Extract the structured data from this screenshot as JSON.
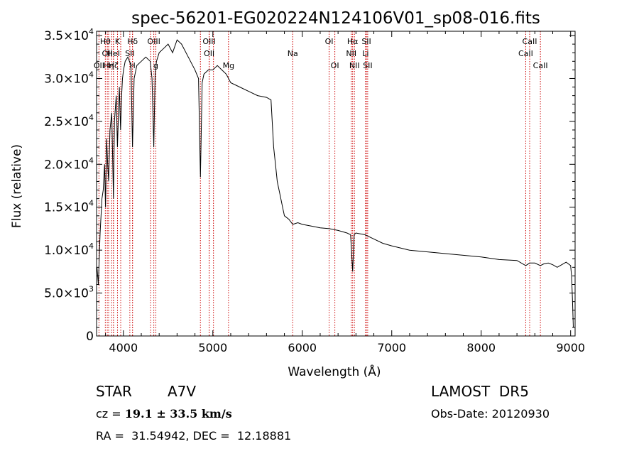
{
  "chart_data": {
    "type": "line",
    "title": "spec-56201-EG020224N124106V01_sp08-016.fits",
    "xlabel": "Wavelength (Å)",
    "ylabel": "Flux (relative)",
    "xlim": [
      3700,
      9050
    ],
    "ylim": [
      0,
      35500
    ],
    "x_ticks": [
      {
        "value": 4000,
        "label": "4000"
      },
      {
        "value": 5000,
        "label": "5000"
      },
      {
        "value": 6000,
        "label": "6000"
      },
      {
        "value": 7000,
        "label": "7000"
      },
      {
        "value": 8000,
        "label": "8000"
      },
      {
        "value": 9000,
        "label": "9000"
      }
    ],
    "y_ticks": [
      {
        "value": 0,
        "mant": "0",
        "exp": ""
      },
      {
        "value": 5000,
        "mant": "5.0×10",
        "exp": "3"
      },
      {
        "value": 10000,
        "mant": "1.0×10",
        "exp": "4"
      },
      {
        "value": 15000,
        "mant": "1.5×10",
        "exp": "4"
      },
      {
        "value": 20000,
        "mant": "2.0×10",
        "exp": "4"
      },
      {
        "value": 25000,
        "mant": "2.5×10",
        "exp": "4"
      },
      {
        "value": 30000,
        "mant": "3.0×10",
        "exp": "4"
      },
      {
        "value": 35000,
        "mant": "3.5×10",
        "exp": "4"
      }
    ],
    "grid": false,
    "line_color": "#000000",
    "marker_color": "#cc0000",
    "series": [
      {
        "x": [
          3705,
          3720,
          3740,
          3760,
          3775,
          3790,
          3800,
          3812,
          3825,
          3835,
          3850,
          3870,
          3889,
          3900,
          3920,
          3933,
          3945,
          3955,
          3968,
          3980,
          3990,
          4002,
          4020,
          4050,
          4085,
          4102,
          4120,
          4150,
          4200,
          4250,
          4300,
          4320,
          4340,
          4355,
          4370,
          4400,
          4450,
          4500,
          4550,
          4600,
          4650,
          4700,
          4750,
          4800,
          4840,
          4861,
          4880,
          4900,
          4950,
          5000,
          5050,
          5100,
          5150,
          5200,
          5300,
          5400,
          5500,
          5600,
          5650,
          5680,
          5700,
          5720,
          5750,
          5780,
          5800,
          5850,
          5893,
          5950,
          6000,
          6100,
          6200,
          6300,
          6400,
          6500,
          6540,
          6563,
          6580,
          6600,
          6700,
          6800,
          6900,
          7000,
          7200,
          7400,
          7600,
          7800,
          8000,
          8200,
          8400,
          8498,
          8542,
          8600,
          8662,
          8700,
          8750,
          8800,
          8850,
          8900,
          8950,
          9000,
          9010,
          9020,
          9030
        ],
        "y": [
          8000,
          6000,
          12000,
          16000,
          17000,
          20000,
          15000,
          23000,
          20000,
          18000,
          24000,
          26000,
          16000,
          25000,
          28000,
          22000,
          26000,
          29000,
          24000,
          28000,
          30000,
          31000,
          32000,
          32500,
          31500,
          22000,
          30000,
          31500,
          32000,
          32500,
          32000,
          30000,
          22000,
          30500,
          32000,
          33000,
          33500,
          34000,
          33000,
          34500,
          34000,
          33000,
          32000,
          31000,
          30000,
          18500,
          29500,
          30500,
          31000,
          31000,
          31500,
          31000,
          30500,
          29500,
          29000,
          28500,
          28000,
          27800,
          27500,
          22000,
          20000,
          18000,
          16500,
          15000,
          14000,
          13600,
          13000,
          13200,
          13000,
          12800,
          12600,
          12500,
          12300,
          12000,
          11800,
          7500,
          11800,
          12000,
          11800,
          11300,
          10800,
          10500,
          10000,
          9800,
          9600,
          9400,
          9200,
          8900,
          8800,
          8200,
          8500,
          8500,
          8200,
          8400,
          8500,
          8300,
          8000,
          8300,
          8600,
          8200,
          7000,
          4500,
          1000
        ]
      }
    ],
    "line_markers": [
      {
        "x": 3727,
        "label": "OII",
        "row": 2
      },
      {
        "x": 3798,
        "label": "Hθ",
        "row": 0
      },
      {
        "x": 3820,
        "label": "OII",
        "row": 1
      },
      {
        "x": 3835,
        "label": "Hη",
        "row": 2
      },
      {
        "x": 3869,
        "label": "",
        "row": 0
      },
      {
        "x": 3889,
        "label": "HeI",
        "row": 1
      },
      {
        "x": 3889,
        "label": "Hζ",
        "row": 2
      },
      {
        "x": 3934,
        "label": "K",
        "row": 0
      },
      {
        "x": 3970,
        "label": "",
        "row": 0
      },
      {
        "x": 4072,
        "label": "SII",
        "row": 1
      },
      {
        "x": 4102,
        "label": "Hδ",
        "row": 0
      },
      {
        "x": 4102,
        "label": "H",
        "row": 2
      },
      {
        "x": 4304,
        "label": "",
        "row": 0
      },
      {
        "x": 4340,
        "label": "OIII",
        "row": 0
      },
      {
        "x": 4363,
        "label": "g",
        "row": 2
      },
      {
        "x": 4861,
        "label": "",
        "row": 0
      },
      {
        "x": 4959,
        "label": "OIII",
        "row": 0
      },
      {
        "x": 4959,
        "label": "OII",
        "row": 1
      },
      {
        "x": 5007,
        "label": "",
        "row": 0
      },
      {
        "x": 5175,
        "label": "Mg",
        "row": 2
      },
      {
        "x": 5893,
        "label": "Na",
        "row": 1
      },
      {
        "x": 6300,
        "label": "OI",
        "row": 0
      },
      {
        "x": 6364,
        "label": "OI",
        "row": 2
      },
      {
        "x": 6548,
        "label": "NII",
        "row": 1
      },
      {
        "x": 6563,
        "label": "Hα",
        "row": 0
      },
      {
        "x": 6583,
        "label": "NII",
        "row": 2
      },
      {
        "x": 6707,
        "label": "Li",
        "row": 1
      },
      {
        "x": 6717,
        "label": "SII",
        "row": 0
      },
      {
        "x": 6731,
        "label": "SII",
        "row": 2
      },
      {
        "x": 8498,
        "label": "CaII",
        "row": 1
      },
      {
        "x": 8542,
        "label": "CaII",
        "row": 0
      },
      {
        "x": 8662,
        "label": "CaII",
        "row": 2
      }
    ]
  },
  "info": {
    "object_class": "STAR",
    "subclass": "A7V",
    "survey": "LAMOST  DR5",
    "cz_label": "cz = ",
    "cz_value": "19.1 ± 33.5 km/s",
    "obs_date": "Obs-Date: 20120930",
    "radec": "RA =  31.54942, DEC =  12.18881"
  }
}
